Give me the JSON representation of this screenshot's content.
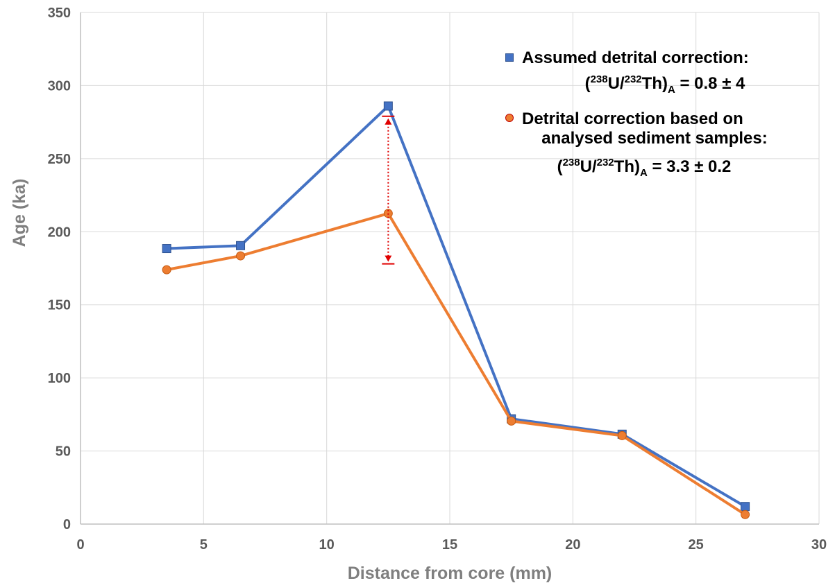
{
  "chart_data": {
    "type": "line",
    "x": [
      3.5,
      6.5,
      12.5,
      17.5,
      22,
      27
    ],
    "series": [
      {
        "name": "Assumed detrital correction:",
        "marker": "square",
        "color": "#4472c4",
        "values": [
          188.5,
          190.5,
          286,
          72,
          61.5,
          12
        ]
      },
      {
        "name": "Detrital correction based on analysed sediment samples:",
        "marker": "circle",
        "color": "#ed7d31",
        "values": [
          174,
          183.5,
          212.5,
          70.5,
          60.5,
          6.5
        ]
      }
    ],
    "annotation": {
      "type": "double-arrow",
      "x": 12.5,
      "y_from": 279,
      "y_to": 178,
      "color": "#e00000"
    },
    "xlabel": "Distance from core (mm)",
    "ylabel": "Age (ka)",
    "xlim": [
      0,
      30
    ],
    "ylim": [
      0,
      350
    ],
    "xticks": [
      "0",
      "5",
      "10",
      "15",
      "20",
      "25",
      "30"
    ],
    "yticks": [
      "0",
      "50",
      "100",
      "150",
      "200",
      "250",
      "300",
      "350"
    ],
    "grid": true,
    "legend_position": "top-right"
  },
  "legend": {
    "entry1_line1": "Assumed detrital correction:",
    "entry1_formula": {
      "open": "(",
      "sup1": "238",
      "u": "U/",
      "sup2": "232",
      "th": "Th)",
      "sub": "A",
      "value": " = 0.8 ± 4"
    },
    "entry2_line1": "Detrital correction based on",
    "entry2_line2": "analysed sediment samples:",
    "entry2_formula": {
      "open": "(",
      "sup1": "238",
      "u": "U/",
      "sup2": "232",
      "th": "Th)",
      "sub": "A",
      "value": " = 3.3 ± 0.2"
    }
  }
}
